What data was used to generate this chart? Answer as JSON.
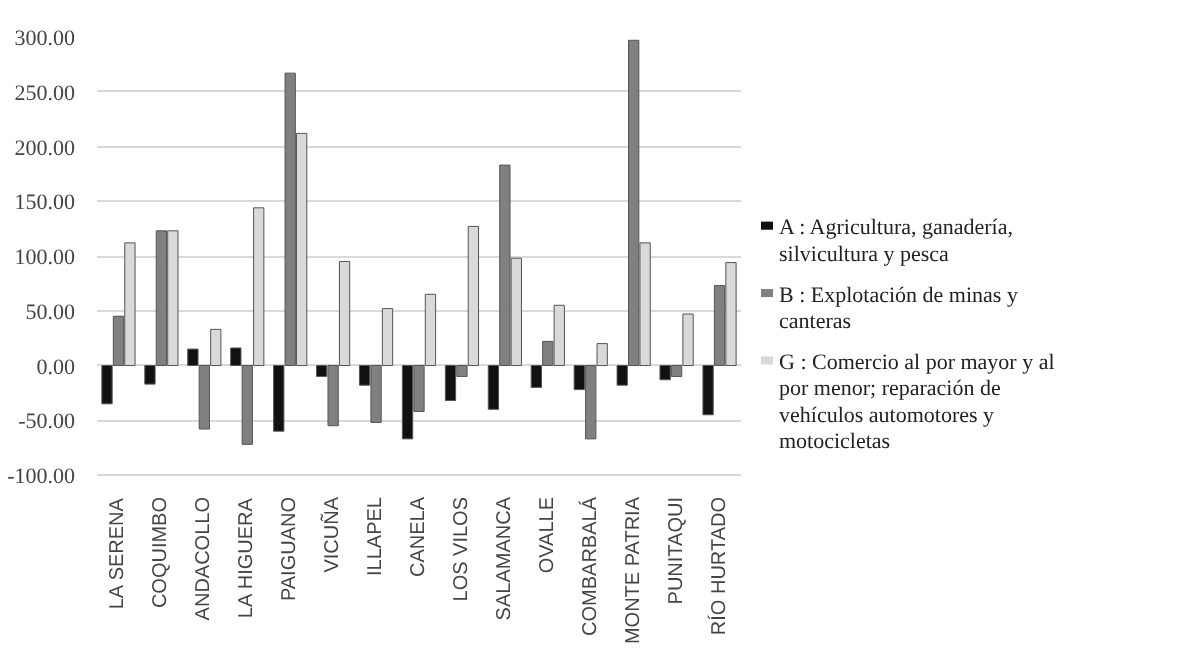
{
  "chart_data": {
    "type": "bar",
    "categories": [
      "LA SERENA",
      "COQUIMBO",
      "ANDACOLLO",
      "LA HIGUERA",
      "PAIGUANO",
      "VICUÑA",
      "ILLAPEL",
      "CANELA",
      "LOS VILOS",
      "SALAMANCA",
      "OVALLE",
      "COMBARBALÁ",
      "MONTE PATRIA",
      "PUNITAQUI",
      "RÍO HURTADO"
    ],
    "series": [
      {
        "name": "A : Agricultura, ganadería, silvicultura y pesca",
        "color": "#111111",
        "values": [
          -35,
          -17,
          15,
          16,
          -60,
          -10,
          -18,
          -67,
          -32,
          -40,
          -20,
          -22,
          -18,
          -13,
          -45
        ]
      },
      {
        "name": "B : Explotación de minas y canteras",
        "color": "#808080",
        "values": [
          45,
          123,
          -58,
          -72,
          267,
          -55,
          -52,
          -42,
          -10,
          183,
          22,
          -67,
          297,
          -10,
          73
        ]
      },
      {
        "name": "G : Comercio al por mayor y al por menor; reparación de vehículos automotores y motocicletas",
        "color": "#d9d9d9",
        "values": [
          112,
          123,
          33,
          144,
          212,
          95,
          52,
          65,
          127,
          98,
          55,
          20,
          112,
          47,
          94
        ]
      }
    ],
    "ylim": [
      -100,
      300
    ],
    "yticks": [
      {
        "value": -100,
        "label": "-100.00"
      },
      {
        "value": -50,
        "label": "-50.00"
      },
      {
        "value": 0,
        "label": "0.00"
      },
      {
        "value": 50,
        "label": "50.00"
      },
      {
        "value": 100,
        "label": "100.00"
      },
      {
        "value": 150,
        "label": "150.00"
      },
      {
        "value": 200,
        "label": "200.00"
      },
      {
        "value": 250,
        "label": "250.00"
      },
      {
        "value": 300,
        "label": "300.00"
      }
    ],
    "grid": "y",
    "legend": "right"
  }
}
